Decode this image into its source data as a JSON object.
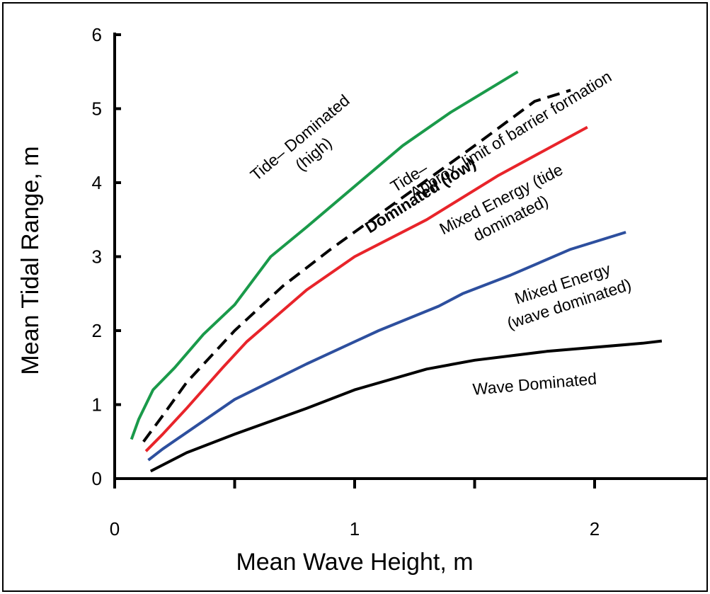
{
  "chart_data": {
    "type": "line",
    "xlabel": "Mean Wave Height, m",
    "ylabel": "Mean Tidal Range, m",
    "xlim": [
      0,
      2.5
    ],
    "ylim": [
      0,
      6
    ],
    "x_ticks": [
      "0",
      "1",
      "2"
    ],
    "x_minor_ticks": [
      0.5,
      1.5
    ],
    "y_ticks": [
      "0",
      "1",
      "2",
      "3",
      "4",
      "5",
      "6"
    ],
    "grid": false,
    "legend": "none",
    "series": [
      {
        "color": "#1a9a4a",
        "dash": "solid",
        "points": [
          [
            0.07,
            0.53
          ],
          [
            0.1,
            0.8
          ],
          [
            0.16,
            1.2
          ],
          [
            0.25,
            1.5
          ],
          [
            0.37,
            1.95
          ],
          [
            0.5,
            2.35
          ],
          [
            0.65,
            3.0
          ],
          [
            0.8,
            3.4
          ],
          [
            1.0,
            3.95
          ],
          [
            1.2,
            4.5
          ],
          [
            1.4,
            4.95
          ],
          [
            1.68,
            5.5
          ]
        ]
      },
      {
        "color": "#000000",
        "dash": "dashed",
        "points": [
          [
            0.12,
            0.5
          ],
          [
            0.2,
            0.85
          ],
          [
            0.3,
            1.3
          ],
          [
            0.5,
            2.0
          ],
          [
            0.7,
            2.6
          ],
          [
            0.9,
            3.1
          ],
          [
            1.2,
            3.8
          ],
          [
            1.5,
            4.5
          ],
          [
            1.75,
            5.1
          ],
          [
            1.9,
            5.25
          ]
        ]
      },
      {
        "color": "#e8242a",
        "dash": "solid",
        "points": [
          [
            0.13,
            0.37
          ],
          [
            0.2,
            0.6
          ],
          [
            0.3,
            0.95
          ],
          [
            0.45,
            1.5
          ],
          [
            0.55,
            1.85
          ],
          [
            0.8,
            2.55
          ],
          [
            1.0,
            3.0
          ],
          [
            1.3,
            3.5
          ],
          [
            1.6,
            4.1
          ],
          [
            1.97,
            4.75
          ]
        ]
      },
      {
        "color": "#2d4f9e",
        "dash": "solid",
        "points": [
          [
            0.14,
            0.25
          ],
          [
            0.2,
            0.4
          ],
          [
            0.5,
            1.07
          ],
          [
            0.8,
            1.55
          ],
          [
            1.1,
            2.0
          ],
          [
            1.35,
            2.33
          ],
          [
            1.45,
            2.5
          ],
          [
            1.65,
            2.75
          ],
          [
            1.9,
            3.1
          ],
          [
            2.13,
            3.33
          ]
        ]
      },
      {
        "color": "#000000",
        "dash": "solid",
        "points": [
          [
            0.15,
            0.1
          ],
          [
            0.3,
            0.35
          ],
          [
            0.5,
            0.6
          ],
          [
            0.8,
            0.95
          ],
          [
            1.0,
            1.2
          ],
          [
            1.3,
            1.48
          ],
          [
            1.5,
            1.6
          ],
          [
            1.8,
            1.72
          ],
          [
            2.2,
            1.83
          ],
          [
            2.28,
            1.86
          ]
        ]
      }
    ],
    "annotations": [
      {
        "lines": [
          "Tide– Dominated",
          "(high)"
        ],
        "x": 0.8,
        "y": 4.5,
        "angle": -40,
        "bold_words": []
      },
      {
        "lines": [
          "Tide–",
          "Dominated (low)"
        ],
        "x": 1.25,
        "y": 3.95,
        "angle": -32,
        "bold_line": 1
      },
      {
        "lines": [
          "Approx. limit of barrier formation"
        ],
        "x": 1.65,
        "y": 4.65,
        "angle": -31
      },
      {
        "lines": [
          "Mixed Energy (tide",
          "dominated)"
        ],
        "x": 1.63,
        "y": 3.65,
        "angle": -27
      },
      {
        "lines": [
          "Mixed Energy",
          "(wave dominated)"
        ],
        "x": 1.88,
        "y": 2.5,
        "angle": -18
      },
      {
        "lines": [
          "Wave Dominated"
        ],
        "x": 1.75,
        "y": 1.28,
        "angle": -5
      }
    ]
  }
}
